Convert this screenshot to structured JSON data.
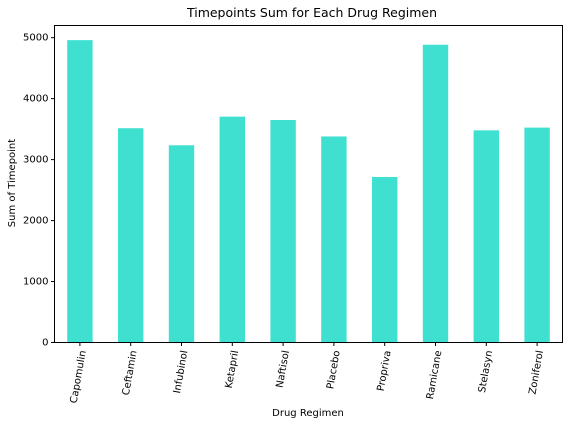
{
  "chart_data": {
    "type": "bar",
    "title": "Timepoints Sum for Each Drug Regimen",
    "xlabel": "Drug Regimen",
    "ylabel": "Sum of Timepoint",
    "categories": [
      "Capomulin",
      "Ceftamin",
      "Infubinol",
      "Ketapril",
      "Naftisol",
      "Placebo",
      "Propriva",
      "Ramicane",
      "Stelasyn",
      "Zoniferol"
    ],
    "values": [
      4960,
      3515,
      3235,
      3705,
      3650,
      3380,
      2715,
      4885,
      3480,
      3525
    ],
    "ylim": [
      0,
      5200
    ],
    "yticks": [
      0,
      1000,
      2000,
      3000,
      4000,
      5000
    ],
    "bar_color": "#40e0d0",
    "grid": false,
    "legend": "none"
  }
}
